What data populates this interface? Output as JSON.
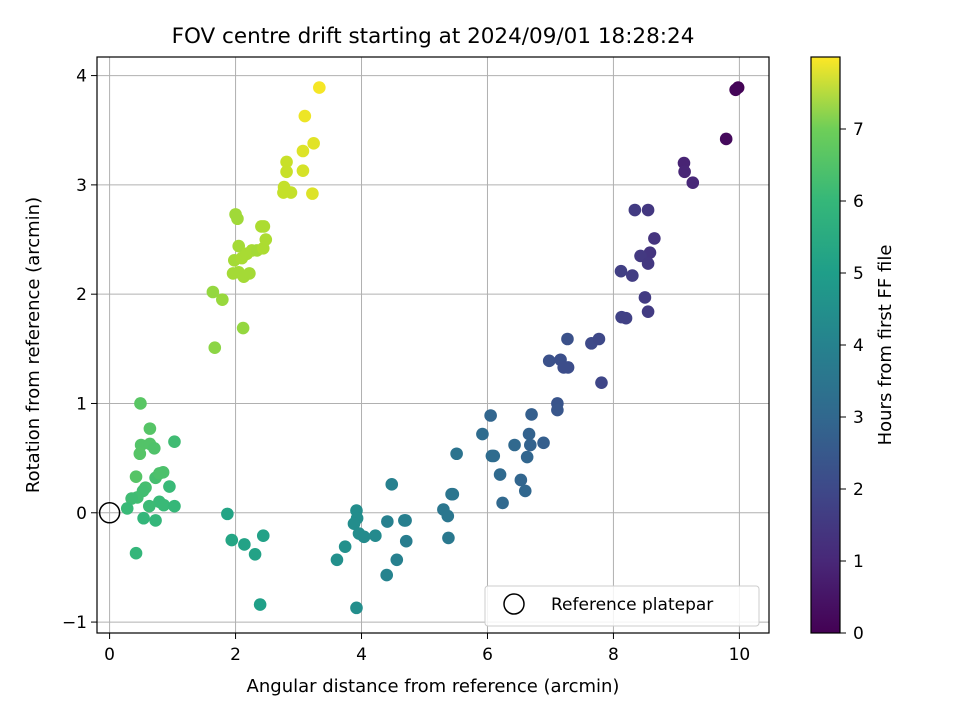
{
  "chart_data": {
    "type": "scatter",
    "title": "FOV centre drift starting at 2024/09/01 18:28:24",
    "xlabel": "Angular distance from reference (arcmin)",
    "ylabel": "Rotation from reference (arcmin)",
    "xlim": [
      -0.2,
      10.47
    ],
    "ylim": [
      -1.1,
      4.17
    ],
    "x_ticks": [
      0,
      2,
      4,
      6,
      8,
      10
    ],
    "y_ticks": [
      -1,
      0,
      1,
      2,
      3,
      4
    ],
    "grid": true,
    "colormap": "viridis",
    "colorbar": {
      "label": "Hours from first FF file",
      "range": [
        0,
        8
      ],
      "ticks": [
        0,
        1,
        2,
        3,
        4,
        5,
        6,
        7
      ]
    },
    "reference_point": {
      "x": 0,
      "y": 0
    },
    "legend": {
      "position": "bottom-right",
      "label": "Reference platepar"
    },
    "points": [
      {
        "x": 9.98,
        "y": 3.89,
        "c": 0.05
      },
      {
        "x": 9.94,
        "y": 3.87,
        "c": 0.1
      },
      {
        "x": 9.79,
        "y": 3.42,
        "c": 0.2
      },
      {
        "x": 9.12,
        "y": 3.2,
        "c": 0.8
      },
      {
        "x": 9.13,
        "y": 3.12,
        "c": 0.85
      },
      {
        "x": 9.26,
        "y": 3.02,
        "c": 0.9
      },
      {
        "x": 8.34,
        "y": 2.77,
        "c": 1.4
      },
      {
        "x": 8.55,
        "y": 2.77,
        "c": 1.3
      },
      {
        "x": 8.65,
        "y": 2.51,
        "c": 1.2
      },
      {
        "x": 8.58,
        "y": 2.38,
        "c": 1.25
      },
      {
        "x": 8.43,
        "y": 2.35,
        "c": 1.35
      },
      {
        "x": 8.55,
        "y": 2.28,
        "c": 1.3
      },
      {
        "x": 8.12,
        "y": 2.21,
        "c": 1.5
      },
      {
        "x": 8.3,
        "y": 2.17,
        "c": 1.45
      },
      {
        "x": 8.5,
        "y": 1.97,
        "c": 1.4
      },
      {
        "x": 8.55,
        "y": 1.84,
        "c": 1.4
      },
      {
        "x": 8.13,
        "y": 1.79,
        "c": 1.6
      },
      {
        "x": 8.2,
        "y": 1.78,
        "c": 1.55
      },
      {
        "x": 7.27,
        "y": 1.59,
        "c": 2.0
      },
      {
        "x": 7.65,
        "y": 1.55,
        "c": 1.8
      },
      {
        "x": 7.77,
        "y": 1.59,
        "c": 1.75
      },
      {
        "x": 6.98,
        "y": 1.39,
        "c": 2.0
      },
      {
        "x": 7.16,
        "y": 1.4,
        "c": 1.95
      },
      {
        "x": 7.21,
        "y": 1.33,
        "c": 1.9
      },
      {
        "x": 7.28,
        "y": 1.33,
        "c": 1.9
      },
      {
        "x": 7.81,
        "y": 1.19,
        "c": 1.7
      },
      {
        "x": 7.11,
        "y": 1.0,
        "c": 2.1
      },
      {
        "x": 7.11,
        "y": 0.94,
        "c": 2.15
      },
      {
        "x": 6.05,
        "y": 0.89,
        "c": 2.6
      },
      {
        "x": 6.7,
        "y": 0.9,
        "c": 2.4
      },
      {
        "x": 5.92,
        "y": 0.72,
        "c": 2.8
      },
      {
        "x": 6.66,
        "y": 0.72,
        "c": 2.5
      },
      {
        "x": 6.43,
        "y": 0.62,
        "c": 2.7
      },
      {
        "x": 6.68,
        "y": 0.62,
        "c": 2.5
      },
      {
        "x": 6.89,
        "y": 0.64,
        "c": 2.4
      },
      {
        "x": 6.1,
        "y": 0.52,
        "c": 2.8
      },
      {
        "x": 6.07,
        "y": 0.52,
        "c": 2.8
      },
      {
        "x": 6.63,
        "y": 0.51,
        "c": 2.6
      },
      {
        "x": 6.2,
        "y": 0.35,
        "c": 2.75
      },
      {
        "x": 6.53,
        "y": 0.3,
        "c": 2.6
      },
      {
        "x": 6.6,
        "y": 0.2,
        "c": 2.65
      },
      {
        "x": 6.24,
        "y": 0.09,
        "c": 2.7
      },
      {
        "x": 5.51,
        "y": 0.54,
        "c": 3.05
      },
      {
        "x": 5.43,
        "y": 0.17,
        "c": 3.1
      },
      {
        "x": 5.45,
        "y": 0.17,
        "c": 3.1
      },
      {
        "x": 5.3,
        "y": 0.03,
        "c": 3.15
      },
      {
        "x": 5.37,
        "y": -0.03,
        "c": 3.15
      },
      {
        "x": 5.38,
        "y": -0.23,
        "c": 3.2
      },
      {
        "x": 4.48,
        "y": 0.26,
        "c": 3.5
      },
      {
        "x": 4.41,
        "y": -0.08,
        "c": 3.5
      },
      {
        "x": 4.68,
        "y": -0.07,
        "c": 3.45
      },
      {
        "x": 4.7,
        "y": -0.07,
        "c": 3.45
      },
      {
        "x": 4.71,
        "y": -0.26,
        "c": 3.4
      },
      {
        "x": 4.56,
        "y": -0.43,
        "c": 3.5
      },
      {
        "x": 4.4,
        "y": -0.57,
        "c": 3.6
      },
      {
        "x": 3.92,
        "y": 0.02,
        "c": 3.9
      },
      {
        "x": 3.93,
        "y": -0.05,
        "c": 3.9
      },
      {
        "x": 3.88,
        "y": -0.1,
        "c": 3.9
      },
      {
        "x": 3.96,
        "y": -0.19,
        "c": 3.9
      },
      {
        "x": 4.04,
        "y": -0.22,
        "c": 3.85
      },
      {
        "x": 4.22,
        "y": -0.21,
        "c": 3.8
      },
      {
        "x": 3.74,
        "y": -0.31,
        "c": 4.0
      },
      {
        "x": 3.61,
        "y": -0.43,
        "c": 4.0
      },
      {
        "x": 3.92,
        "y": -0.87,
        "c": 3.95
      },
      {
        "x": 1.87,
        "y": -0.01,
        "c": 4.65
      },
      {
        "x": 1.94,
        "y": -0.25,
        "c": 4.7
      },
      {
        "x": 2.14,
        "y": -0.29,
        "c": 4.6
      },
      {
        "x": 2.44,
        "y": -0.21,
        "c": 4.55
      },
      {
        "x": 2.31,
        "y": -0.38,
        "c": 4.6
      },
      {
        "x": 2.39,
        "y": -0.84,
        "c": 4.5
      },
      {
        "x": 0.49,
        "y": 1.0,
        "c": 5.9
      },
      {
        "x": 0.64,
        "y": 0.77,
        "c": 5.85
      },
      {
        "x": 0.5,
        "y": 0.62,
        "c": 5.8
      },
      {
        "x": 0.64,
        "y": 0.63,
        "c": 5.8
      },
      {
        "x": 0.71,
        "y": 0.59,
        "c": 5.75
      },
      {
        "x": 1.03,
        "y": 0.65,
        "c": 5.5
      },
      {
        "x": 0.48,
        "y": 0.54,
        "c": 5.85
      },
      {
        "x": 0.42,
        "y": 0.33,
        "c": 5.85
      },
      {
        "x": 0.73,
        "y": 0.32,
        "c": 5.6
      },
      {
        "x": 0.85,
        "y": 0.37,
        "c": 5.7
      },
      {
        "x": 0.79,
        "y": 0.36,
        "c": 5.7
      },
      {
        "x": 0.57,
        "y": 0.23,
        "c": 5.6
      },
      {
        "x": 0.53,
        "y": 0.2,
        "c": 5.55
      },
      {
        "x": 0.95,
        "y": 0.24,
        "c": 5.4
      },
      {
        "x": 0.44,
        "y": 0.14,
        "c": 5.55
      },
      {
        "x": 0.35,
        "y": 0.13,
        "c": 5.5
      },
      {
        "x": 0.79,
        "y": 0.1,
        "c": 5.4
      },
      {
        "x": 0.86,
        "y": 0.07,
        "c": 5.4
      },
      {
        "x": 1.03,
        "y": 0.06,
        "c": 5.35
      },
      {
        "x": 0.63,
        "y": 0.06,
        "c": 5.45
      },
      {
        "x": 0.28,
        "y": 0.04,
        "c": 5.4
      },
      {
        "x": 0.54,
        "y": -0.05,
        "c": 5.3
      },
      {
        "x": 0.73,
        "y": -0.07,
        "c": 5.3
      },
      {
        "x": 0.42,
        "y": -0.37,
        "c": 5.3
      },
      {
        "x": 1.67,
        "y": 1.51,
        "c": 6.6
      },
      {
        "x": 1.64,
        "y": 2.02,
        "c": 6.7
      },
      {
        "x": 1.79,
        "y": 1.95,
        "c": 6.75
      },
      {
        "x": 2.12,
        "y": 1.69,
        "c": 6.7
      },
      {
        "x": 2.0,
        "y": 2.73,
        "c": 6.85
      },
      {
        "x": 2.03,
        "y": 2.69,
        "c": 6.85
      },
      {
        "x": 2.05,
        "y": 2.44,
        "c": 6.9
      },
      {
        "x": 1.98,
        "y": 2.31,
        "c": 6.9
      },
      {
        "x": 2.1,
        "y": 2.33,
        "c": 6.95
      },
      {
        "x": 2.18,
        "y": 2.37,
        "c": 6.95
      },
      {
        "x": 2.26,
        "y": 2.4,
        "c": 6.95
      },
      {
        "x": 2.34,
        "y": 2.4,
        "c": 6.9
      },
      {
        "x": 2.44,
        "y": 2.42,
        "c": 7.0
      },
      {
        "x": 2.48,
        "y": 2.5,
        "c": 7.0
      },
      {
        "x": 2.41,
        "y": 2.62,
        "c": 7.0
      },
      {
        "x": 2.45,
        "y": 2.62,
        "c": 7.0
      },
      {
        "x": 1.96,
        "y": 2.19,
        "c": 6.9
      },
      {
        "x": 2.05,
        "y": 2.2,
        "c": 6.9
      },
      {
        "x": 2.13,
        "y": 2.16,
        "c": 6.9
      },
      {
        "x": 2.22,
        "y": 2.19,
        "c": 6.9
      },
      {
        "x": 2.81,
        "y": 3.21,
        "c": 7.35
      },
      {
        "x": 2.81,
        "y": 3.12,
        "c": 7.35
      },
      {
        "x": 2.77,
        "y": 2.98,
        "c": 7.3
      },
      {
        "x": 2.76,
        "y": 2.93,
        "c": 7.3
      },
      {
        "x": 2.88,
        "y": 2.93,
        "c": 7.3
      },
      {
        "x": 3.07,
        "y": 3.13,
        "c": 7.5
      },
      {
        "x": 3.07,
        "y": 3.31,
        "c": 7.6
      },
      {
        "x": 3.24,
        "y": 3.38,
        "c": 7.65
      },
      {
        "x": 3.22,
        "y": 2.92,
        "c": 7.6
      },
      {
        "x": 3.1,
        "y": 3.63,
        "c": 7.8
      },
      {
        "x": 3.33,
        "y": 3.89,
        "c": 7.9
      }
    ]
  }
}
